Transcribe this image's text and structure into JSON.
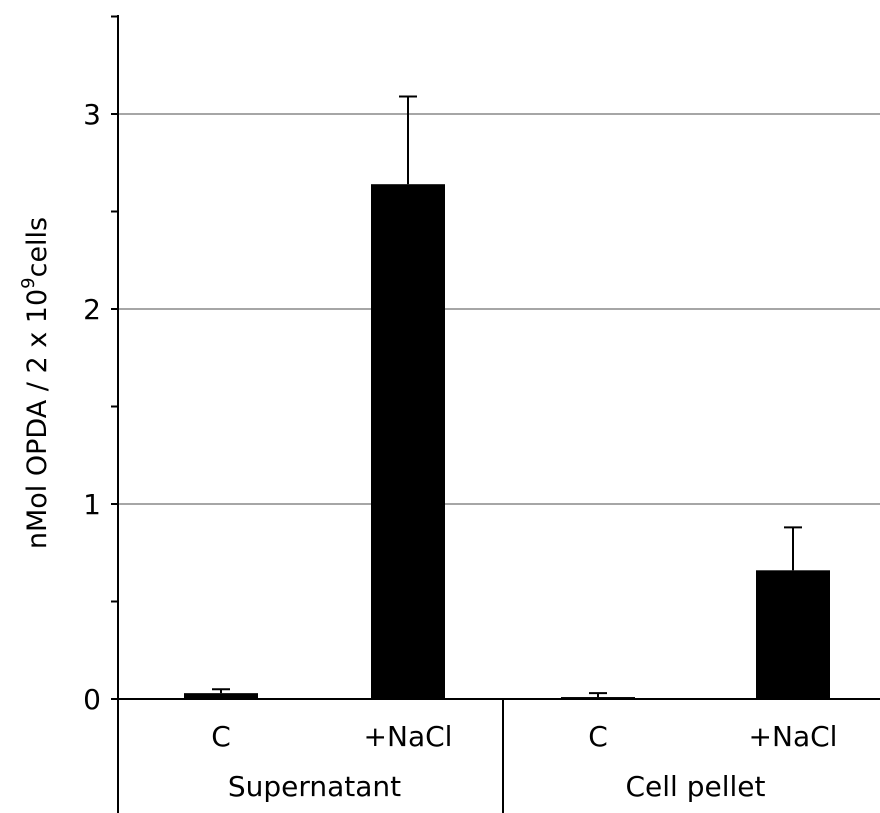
{
  "chart_data": {
    "type": "bar",
    "categories": [
      "C",
      "+NaCl",
      "C",
      "+NaCl"
    ],
    "groups": [
      {
        "label": "Supernatant",
        "categories": [
          "C",
          "+NaCl"
        ]
      },
      {
        "label": "Cell pellet",
        "categories": [
          "C",
          "+NaCl"
        ]
      }
    ],
    "values": [
      0.03,
      2.64,
      0.01,
      0.66
    ],
    "errors": [
      0.02,
      0.45,
      0.02,
      0.22
    ],
    "ylabel": {
      "main": "nMol OPDA / 2 x 10",
      "superscript": "9",
      "suffix": "cells"
    },
    "yticks": [
      "0",
      "1",
      "2",
      "3"
    ],
    "ylim": [
      0,
      3.5
    ],
    "grid": true,
    "bar_color": "#000000",
    "grid_color": "#a6a6a6"
  }
}
